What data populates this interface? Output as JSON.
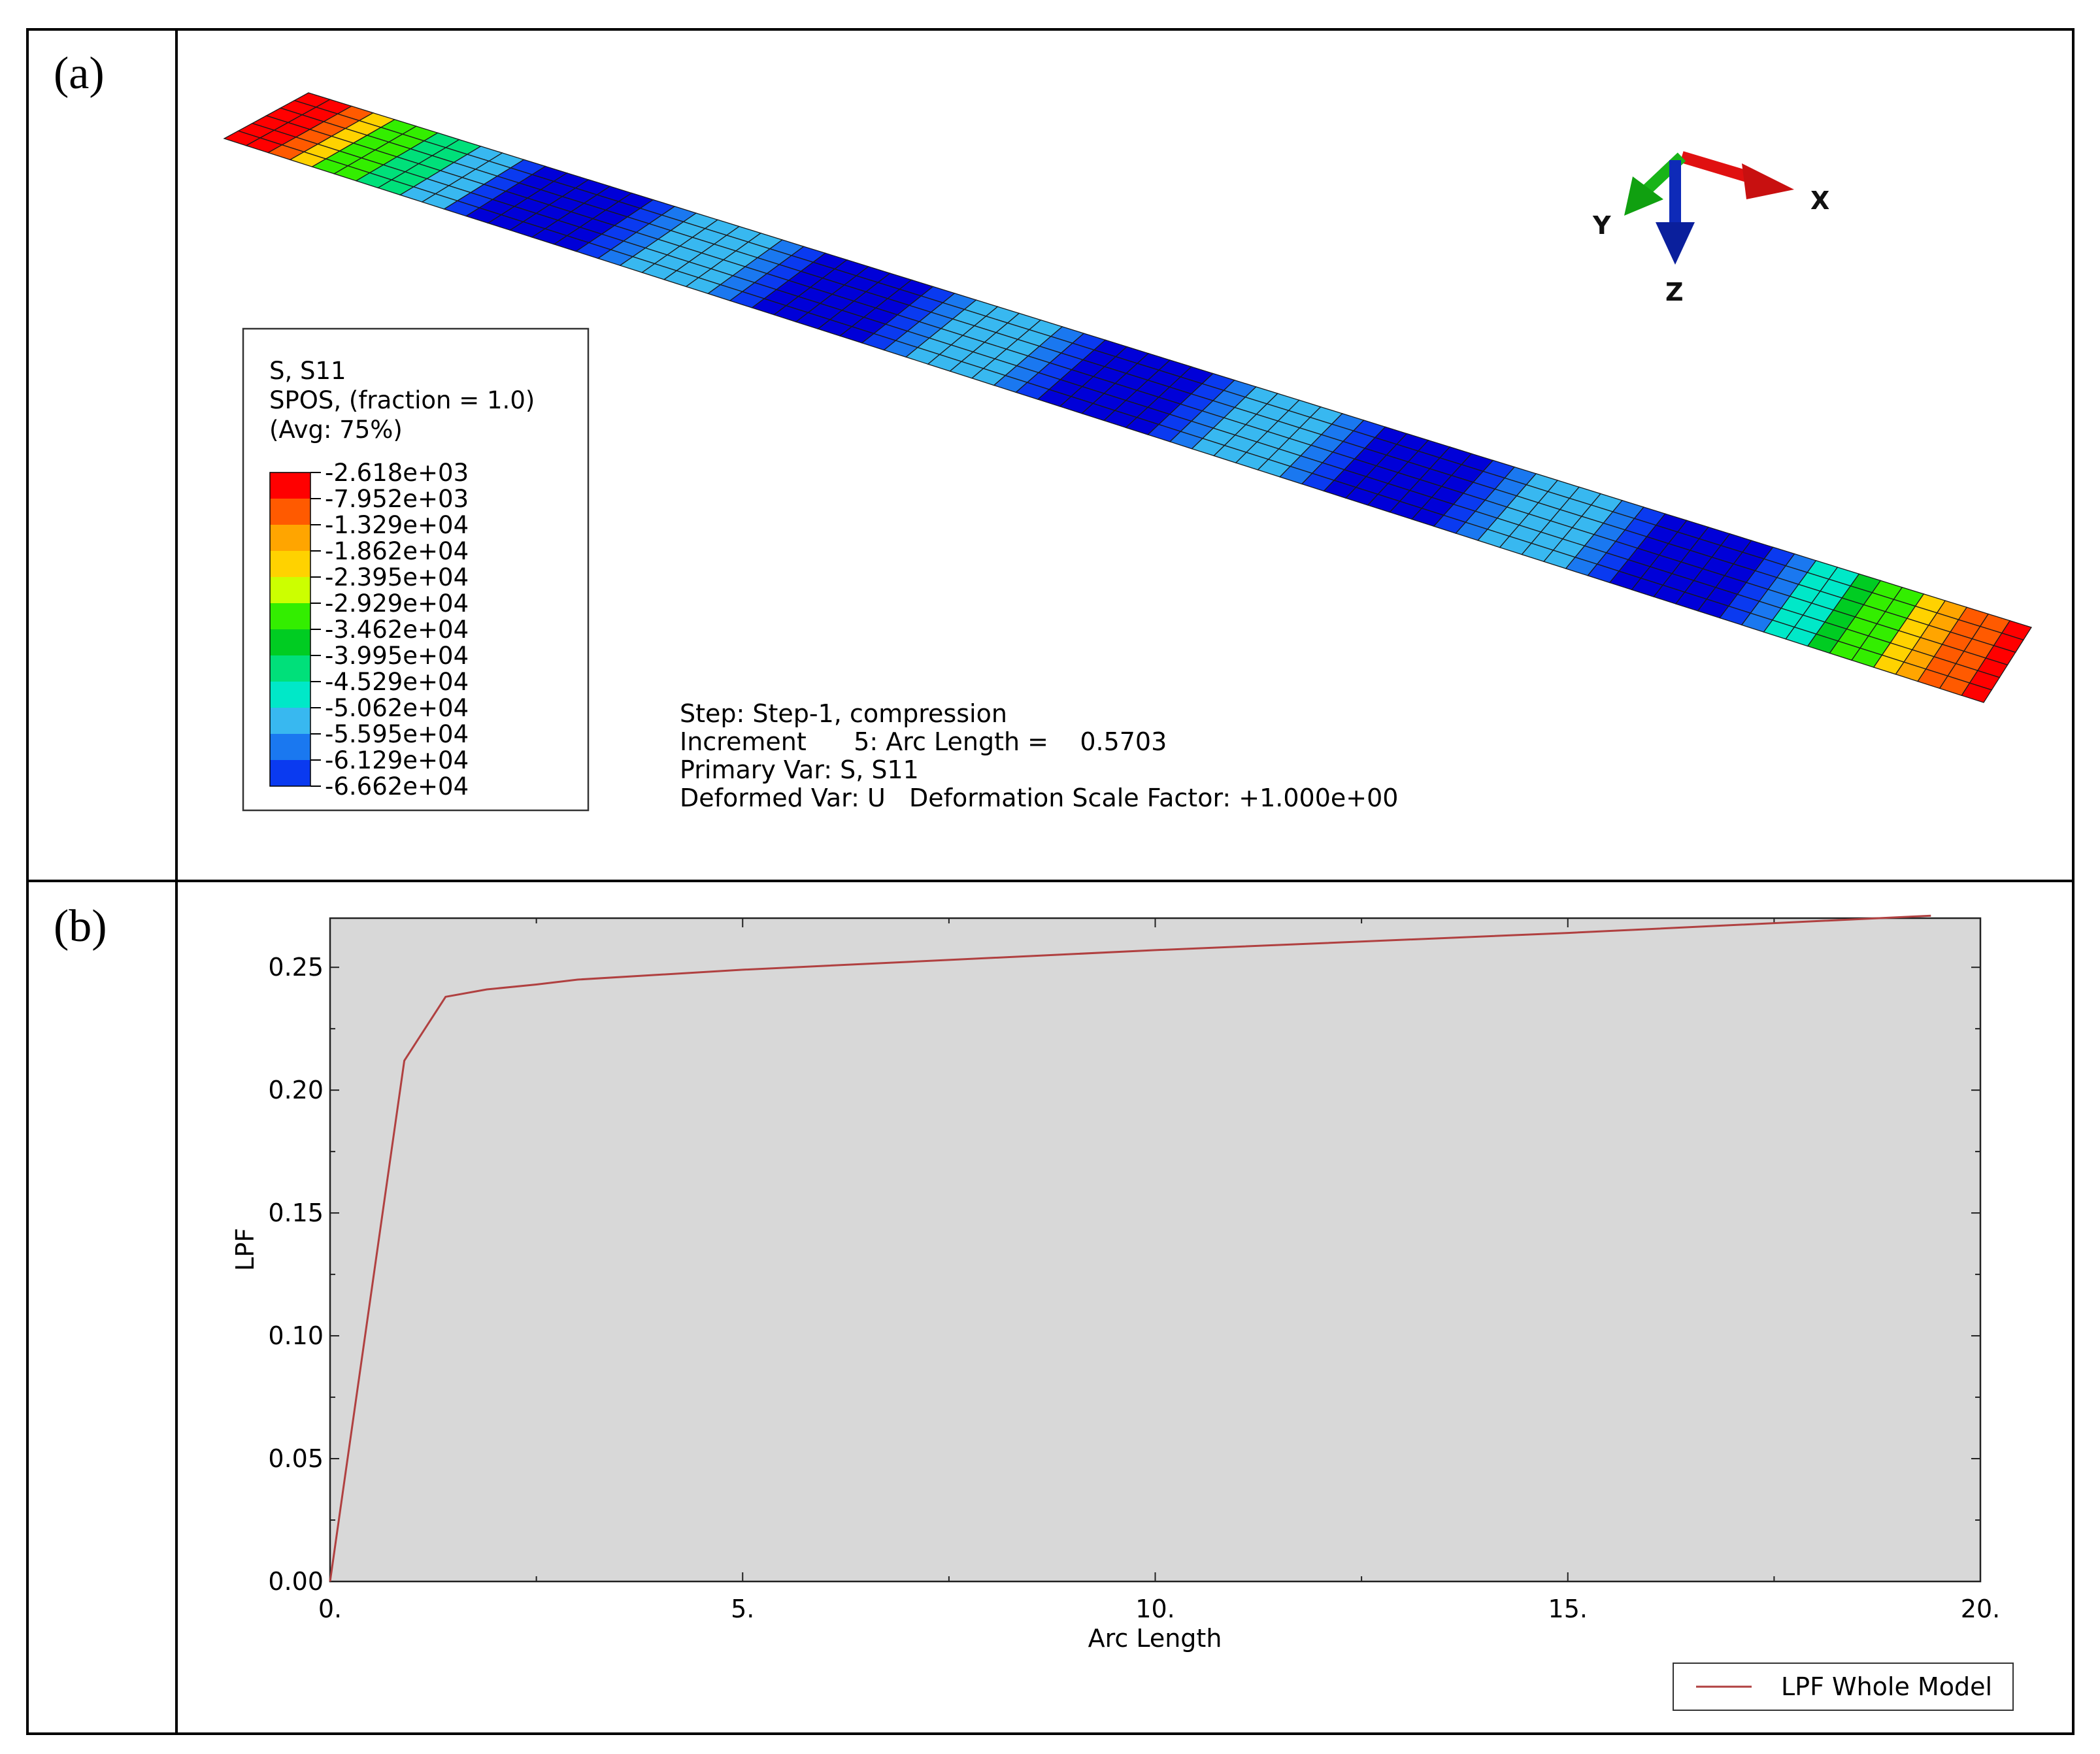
{
  "panels": {
    "a_label": "(a)",
    "b_label": "(b)"
  },
  "contour": {
    "legend_title_lines": [
      "S, S11",
      "SPOS, (fraction = 1.0)",
      "(Avg: 75%)"
    ],
    "legend_values": [
      "-2.618e+03",
      "-7.952e+03",
      "-1.329e+04",
      "-1.862e+04",
      "-2.395e+04",
      "-2.929e+04",
      "-3.462e+04",
      "-3.995e+04",
      "-4.529e+04",
      "-5.062e+04",
      "-5.595e+04",
      "-6.129e+04",
      "-6.662e+04"
    ],
    "legend_colors": [
      "#ff0000",
      "#ff5a00",
      "#ffa500",
      "#ffd200",
      "#ccff00",
      "#33ee00",
      "#00cc22",
      "#00e07a",
      "#00e8c8",
      "#38b8f0",
      "#1a78f0",
      "#0a3af0",
      "#0000d8"
    ],
    "axes_triad": {
      "x": "X",
      "y": "Y",
      "z": "Z"
    },
    "info_lines": [
      "Step: Step-1, compression",
      "Increment      5: Arc Length =    0.5703",
      "Primary Var: S, S11",
      "Deformed Var: U   Deformation Scale Factor: +1.000e+00"
    ]
  },
  "chart_data": {
    "type": "line",
    "xlabel": "Arc Length",
    "ylabel": "LPF",
    "xlim": [
      0,
      20
    ],
    "ylim": [
      0,
      0.27
    ],
    "x_ticks": [
      0,
      5,
      10,
      15,
      20
    ],
    "x_tick_labels": [
      "0.",
      "5.",
      "10.",
      "15.",
      "20."
    ],
    "y_ticks": [
      0,
      0.05,
      0.1,
      0.15,
      0.2,
      0.25
    ],
    "y_tick_labels": [
      "0.00",
      "0.05",
      "0.10",
      "0.15",
      "0.20",
      "0.25"
    ],
    "grid": false,
    "legend_position": "bottom-right",
    "series": [
      {
        "name": "LPF Whole Model",
        "color": "#b04040",
        "x": [
          0,
          0.9,
          1.4,
          1.9,
          2.5,
          3.0,
          5.0,
          10.0,
          15.0,
          19.4
        ],
        "y": [
          0,
          0.212,
          0.238,
          0.241,
          0.243,
          0.245,
          0.249,
          0.257,
          0.264,
          0.271
        ]
      }
    ]
  }
}
